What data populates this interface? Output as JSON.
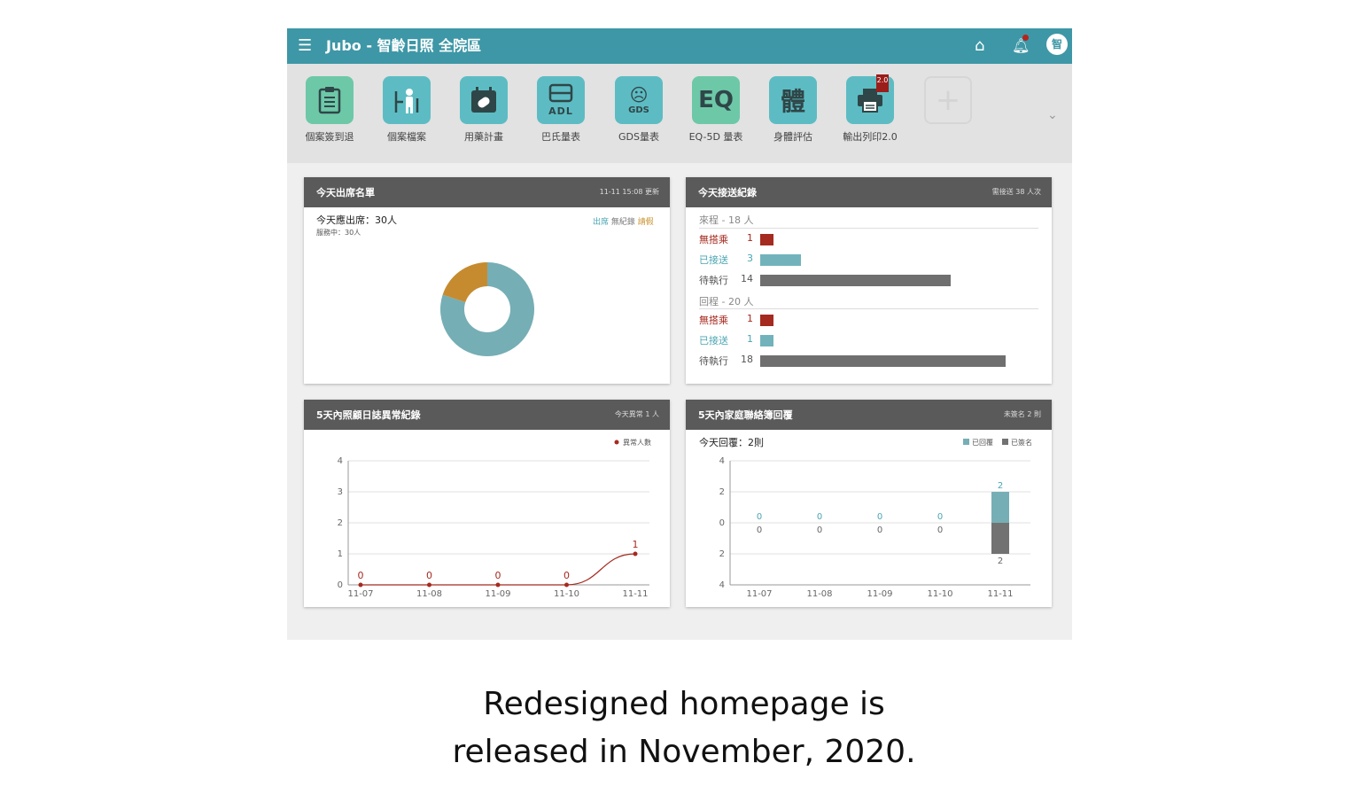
{
  "topbar": {
    "title": "Jubo - 智齡日照 全院區",
    "avatar": "智",
    "bg": "#3e97a6"
  },
  "toolbar": {
    "items": [
      {
        "label": "個案簽到退",
        "icon": "clipboard-checklist-icon"
      },
      {
        "label": "個案檔案",
        "icon": "person-profile-icon"
      },
      {
        "label": "用藥計畫",
        "icon": "calendar-pill-icon"
      },
      {
        "label": "巴氏量表",
        "icon": "adl-icon",
        "text": "ADL"
      },
      {
        "label": "GDS量表",
        "icon": "gds-face-icon",
        "text": "GDS"
      },
      {
        "label": "EQ-5D 量表",
        "icon": "eq-icon",
        "text": "EQ"
      },
      {
        "label": "身體評估",
        "icon": "body-icon",
        "text": "體"
      },
      {
        "label": "輸出列印2.0",
        "icon": "printer-icon",
        "badge": "2.0"
      }
    ],
    "add_icon": "plus-icon"
  },
  "attendance": {
    "title": "今天出席名單",
    "meta": "11-11 15:08 更新",
    "summary": "今天應出席：30人",
    "sub": "服務中：30人",
    "legend": [
      "出席",
      "無紀錄",
      "請假"
    ]
  },
  "transport": {
    "title": "今天接送紀錄",
    "meta": "需接送 38 人次",
    "max": 18,
    "sections": [
      {
        "label": "來程 - 18 人",
        "rows": [
          {
            "label": "無搭乘",
            "value": 1,
            "color": "#a52a1f"
          },
          {
            "label": "已接送",
            "value": 3,
            "color": "#72b3bb"
          },
          {
            "label": "待執行",
            "value": 14,
            "color": "#6f6f6f"
          }
        ]
      },
      {
        "label": "回程 - 20 人",
        "rows": [
          {
            "label": "無搭乘",
            "value": 1,
            "color": "#a52a1f"
          },
          {
            "label": "已接送",
            "value": 1,
            "color": "#72b3bb"
          },
          {
            "label": "待執行",
            "value": 18,
            "color": "#6f6f6f"
          }
        ]
      }
    ]
  },
  "care_log": {
    "title": "5天內照顧日誌異常紀錄",
    "meta": "今天異常 1 人"
  },
  "contact_book": {
    "title": "5天內家庭聯絡簿回覆",
    "meta": "未簽名 2 則",
    "summary": "今天回覆：2則"
  },
  "chart_data": [
    {
      "type": "pie",
      "labels": [
        "出席",
        "無紀錄",
        "請假"
      ],
      "values": [
        24,
        0,
        6
      ],
      "colors": [
        "#76aeb5",
        "#8a8a8a",
        "#c68b2f"
      ]
    },
    {
      "type": "line",
      "categories": [
        "11-07",
        "11-08",
        "11-09",
        "11-10",
        "11-11"
      ],
      "series": [
        {
          "name": "異常人數",
          "values": [
            0,
            0,
            0,
            0,
            1
          ],
          "color": "#a52a1f"
        }
      ],
      "ylim": [
        0,
        4
      ],
      "yticks": [
        0,
        1,
        2,
        3,
        4
      ],
      "legend": "top-right",
      "grid": true
    },
    {
      "type": "bar",
      "categories": [
        "11-07",
        "11-08",
        "11-09",
        "11-10",
        "11-11"
      ],
      "series": [
        {
          "name": "已回覆",
          "values": [
            0,
            0,
            0,
            0,
            2
          ],
          "color": "#76aeb5"
        },
        {
          "name": "已簽名",
          "values": [
            0,
            0,
            0,
            0,
            2
          ],
          "color": "#727272"
        }
      ],
      "ylim": [
        -4,
        4
      ],
      "yticks": [
        "4",
        "2",
        "0",
        "2",
        "4"
      ],
      "legend": "top-right",
      "grid": true
    }
  ],
  "caption": {
    "line1": "Redesigned homepage is",
    "line2": "released in November, 2020."
  }
}
